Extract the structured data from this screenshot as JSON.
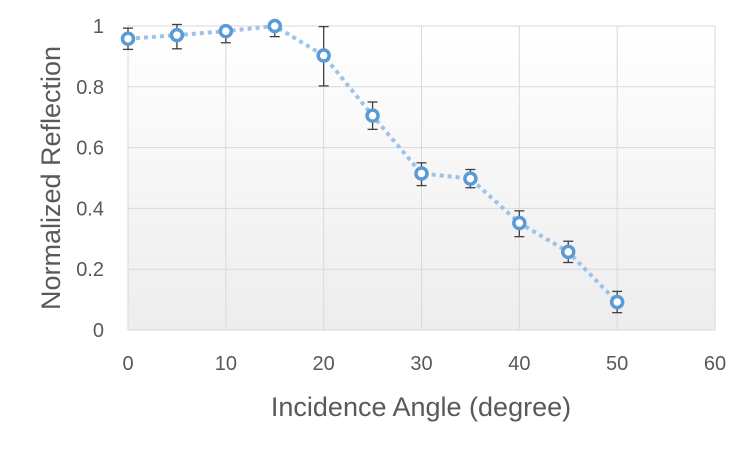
{
  "chart_data": {
    "type": "scatter",
    "title": "",
    "xlabel": "Incidence Angle (degree)",
    "ylabel": "Normalized Reflection",
    "xlim": [
      0,
      60
    ],
    "ylim": [
      0,
      1
    ],
    "xticks": [
      0,
      10,
      20,
      30,
      40,
      50,
      60
    ],
    "yticks": [
      0,
      0.2,
      0.4,
      0.6,
      0.8,
      1
    ],
    "ytick_labels": [
      "0",
      "0.2",
      "0.4",
      "0.6",
      "0.8",
      "1"
    ],
    "grid": true,
    "legend": "none",
    "series": [
      {
        "color": "#5b9bd5",
        "line_color": "#9dc3e6",
        "line_style": "dotted",
        "marker": "circle",
        "x": [
          0,
          5,
          10,
          15,
          20,
          25,
          30,
          35,
          40,
          45,
          50
        ],
        "y": [
          0.958,
          0.97,
          0.983,
          1.0,
          0.903,
          0.705,
          0.515,
          0.498,
          0.352,
          0.257,
          0.092
        ],
        "err_lower": [
          0.035,
          0.045,
          0.038,
          0.035,
          0.1,
          0.045,
          0.04,
          0.03,
          0.045,
          0.035,
          0.035
        ],
        "err_upper": [
          0.035,
          0.035,
          0.015,
          0.0,
          0.095,
          0.045,
          0.035,
          0.03,
          0.04,
          0.035,
          0.035
        ]
      }
    ]
  }
}
